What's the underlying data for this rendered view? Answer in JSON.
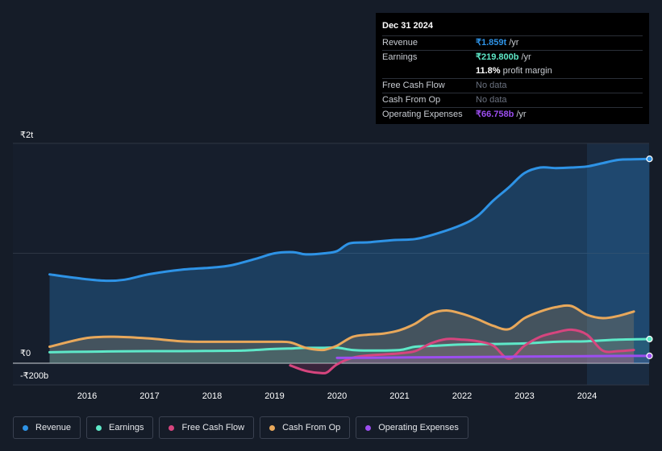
{
  "tooltip": {
    "date": "Dec 31 2024",
    "revenue_label": "Revenue",
    "revenue_value": "₹1.859t",
    "revenue_unit": "/yr",
    "earnings_label": "Earnings",
    "earnings_value": "₹219.800b",
    "earnings_unit": "/yr",
    "margin_value": "11.8%",
    "margin_label": "profit margin",
    "fcf_label": "Free Cash Flow",
    "fcf_value": "No data",
    "cfo_label": "Cash From Op",
    "cfo_value": "No data",
    "opex_label": "Operating Expenses",
    "opex_value": "₹66.758b",
    "opex_unit": "/yr"
  },
  "legend": {
    "revenue": "Revenue",
    "earnings": "Earnings",
    "fcf": "Free Cash Flow",
    "cfo": "Cash From Op",
    "opex": "Operating Expenses"
  },
  "colors": {
    "revenue": "#2e93e6",
    "earnings": "#5ee8c8",
    "fcf": "#d6457e",
    "cfo": "#e8a85b",
    "opex": "#9c4ef0"
  },
  "chart_data": {
    "type": "line",
    "title": "",
    "xlabel": "",
    "ylabel": "",
    "ylim": [
      -200,
      2000
    ],
    "xlim": [
      2015.2,
      2025.05
    ],
    "ytick_labels": [
      "₹2t",
      "₹0",
      "-₹200b"
    ],
    "ytick_values": [
      2000,
      0,
      -200
    ],
    "xtick_labels": [
      "2016",
      "2017",
      "2018",
      "2019",
      "2020",
      "2021",
      "2022",
      "2023",
      "2024"
    ],
    "xtick_values": [
      2016,
      2017,
      2018,
      2019,
      2020,
      2021,
      2022,
      2023,
      2024
    ],
    "units": "INR billions",
    "forecast_start": 2024.0,
    "series": [
      {
        "name": "Revenue",
        "x": [
          2015.4,
          2015.9,
          2016.3,
          2016.6,
          2017.0,
          2017.5,
          2018.0,
          2018.3,
          2018.7,
          2019.0,
          2019.3,
          2019.5,
          2019.8,
          2020.0,
          2020.2,
          2020.5,
          2020.9,
          2021.25,
          2021.6,
          2022.0,
          2022.25,
          2022.5,
          2022.75,
          2023.0,
          2023.25,
          2023.5,
          2023.75,
          2024.0,
          2024.25,
          2024.5,
          2024.75,
          2025.0
        ],
        "values": [
          808,
          770,
          750,
          760,
          810,
          850,
          870,
          890,
          950,
          1000,
          1010,
          990,
          1000,
          1020,
          1090,
          1100,
          1120,
          1130,
          1180,
          1260,
          1340,
          1480,
          1600,
          1730,
          1780,
          1775,
          1780,
          1790,
          1820,
          1850,
          1855,
          1859
        ]
      },
      {
        "name": "Earnings",
        "x": [
          2015.4,
          2016.0,
          2016.5,
          2017.0,
          2017.5,
          2018.0,
          2018.5,
          2019.0,
          2019.3,
          2019.5,
          2019.8,
          2020.0,
          2020.25,
          2020.5,
          2021.0,
          2021.25,
          2021.6,
          2022.0,
          2022.5,
          2023.0,
          2023.5,
          2024.0,
          2024.5,
          2025.0
        ],
        "values": [
          100,
          105,
          108,
          110,
          110,
          112,
          115,
          130,
          135,
          140,
          140,
          142,
          120,
          115,
          120,
          150,
          160,
          170,
          175,
          180,
          195,
          200,
          215,
          220
        ]
      },
      {
        "name": "Free Cash Flow",
        "x": [
          2019.25,
          2019.5,
          2019.75,
          2019.85,
          2020.0,
          2020.25,
          2020.5,
          2020.75,
          2021.0,
          2021.25,
          2021.5,
          2021.75,
          2022.0,
          2022.25,
          2022.5,
          2022.75,
          2023.0,
          2023.25,
          2023.5,
          2023.75,
          2024.0,
          2024.25,
          2024.5,
          2024.75
        ],
        "values": [
          -20,
          -70,
          -90,
          -80,
          -10,
          50,
          70,
          80,
          90,
          110,
          180,
          220,
          215,
          200,
          160,
          40,
          160,
          240,
          280,
          305,
          260,
          115,
          110,
          120
        ]
      },
      {
        "name": "Cash From Op",
        "x": [
          2015.4,
          2016.0,
          2016.5,
          2017.0,
          2017.5,
          2018.0,
          2018.5,
          2019.0,
          2019.25,
          2019.5,
          2019.75,
          2019.85,
          2020.0,
          2020.25,
          2020.5,
          2020.75,
          2021.0,
          2021.25,
          2021.5,
          2021.75,
          2022.0,
          2022.25,
          2022.5,
          2022.75,
          2023.0,
          2023.25,
          2023.5,
          2023.75,
          2024.0,
          2024.25,
          2024.5,
          2024.75
        ],
        "values": [
          150,
          230,
          240,
          225,
          200,
          195,
          195,
          195,
          190,
          140,
          120,
          130,
          160,
          240,
          260,
          270,
          300,
          360,
          450,
          480,
          450,
          400,
          340,
          310,
          410,
          470,
          510,
          520,
          440,
          410,
          430,
          470
        ]
      },
      {
        "name": "Operating Expenses",
        "x": [
          2020.0,
          2020.5,
          2021.0,
          2021.5,
          2022.0,
          2022.5,
          2023.0,
          2023.5,
          2024.0,
          2024.5,
          2025.0
        ],
        "values": [
          48,
          50,
          52,
          54,
          56,
          58,
          60,
          62,
          64,
          66,
          66.758
        ]
      }
    ]
  }
}
